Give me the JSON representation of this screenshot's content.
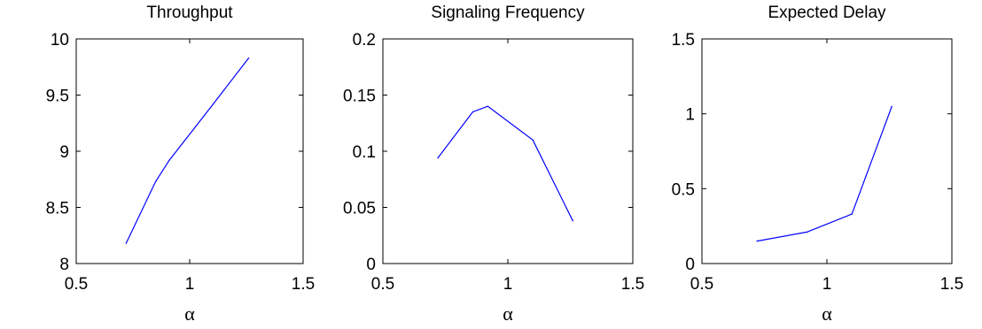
{
  "chart_data": [
    {
      "type": "line",
      "title": "Throughput",
      "xlabel": "α",
      "ylabel": "",
      "xlim": [
        0.5,
        1.5
      ],
      "ylim": [
        8,
        10
      ],
      "xticks": [
        0.5,
        1,
        1.5
      ],
      "xtick_labels": [
        "0.5",
        "1",
        "1.5"
      ],
      "yticks": [
        8,
        8.5,
        9,
        9.5,
        10
      ],
      "ytick_labels": [
        "8",
        "8.5",
        "9",
        "9.5",
        "10"
      ],
      "grid": false,
      "color": "#0000ff",
      "series": [
        {
          "x": [
            0.72,
            0.85,
            0.91,
            1.1,
            1.26
          ],
          "y": [
            8.18,
            8.73,
            8.92,
            9.41,
            9.83
          ]
        }
      ]
    },
    {
      "type": "line",
      "title": "Signaling Frequency",
      "xlabel": "α",
      "ylabel": "",
      "xlim": [
        0.5,
        1.5
      ],
      "ylim": [
        0,
        0.2
      ],
      "xticks": [
        0.5,
        1,
        1.5
      ],
      "xtick_labels": [
        "0.5",
        "1",
        "1.5"
      ],
      "yticks": [
        0,
        0.05,
        0.1,
        0.15,
        0.2
      ],
      "ytick_labels": [
        "0",
        "0.05",
        "0.1",
        "0.15",
        "0.2"
      ],
      "grid": false,
      "color": "#0000ff",
      "series": [
        {
          "x": [
            0.72,
            0.86,
            0.92,
            1.1,
            1.26
          ],
          "y": [
            0.094,
            0.135,
            0.14,
            0.11,
            0.038
          ]
        }
      ]
    },
    {
      "type": "line",
      "title": "Expected Delay",
      "xlabel": "α",
      "ylabel": "",
      "xlim": [
        0.5,
        1.5
      ],
      "ylim": [
        0,
        1.5
      ],
      "xticks": [
        0.5,
        1,
        1.5
      ],
      "xtick_labels": [
        "0.5",
        "1",
        "1.5"
      ],
      "yticks": [
        0,
        0.5,
        1,
        1.5
      ],
      "ytick_labels": [
        "0",
        "0.5",
        "1",
        "1.5"
      ],
      "grid": false,
      "color": "#0000ff",
      "series": [
        {
          "x": [
            0.72,
            0.92,
            1.1,
            1.26
          ],
          "y": [
            0.15,
            0.21,
            0.33,
            1.05
          ]
        }
      ]
    }
  ]
}
